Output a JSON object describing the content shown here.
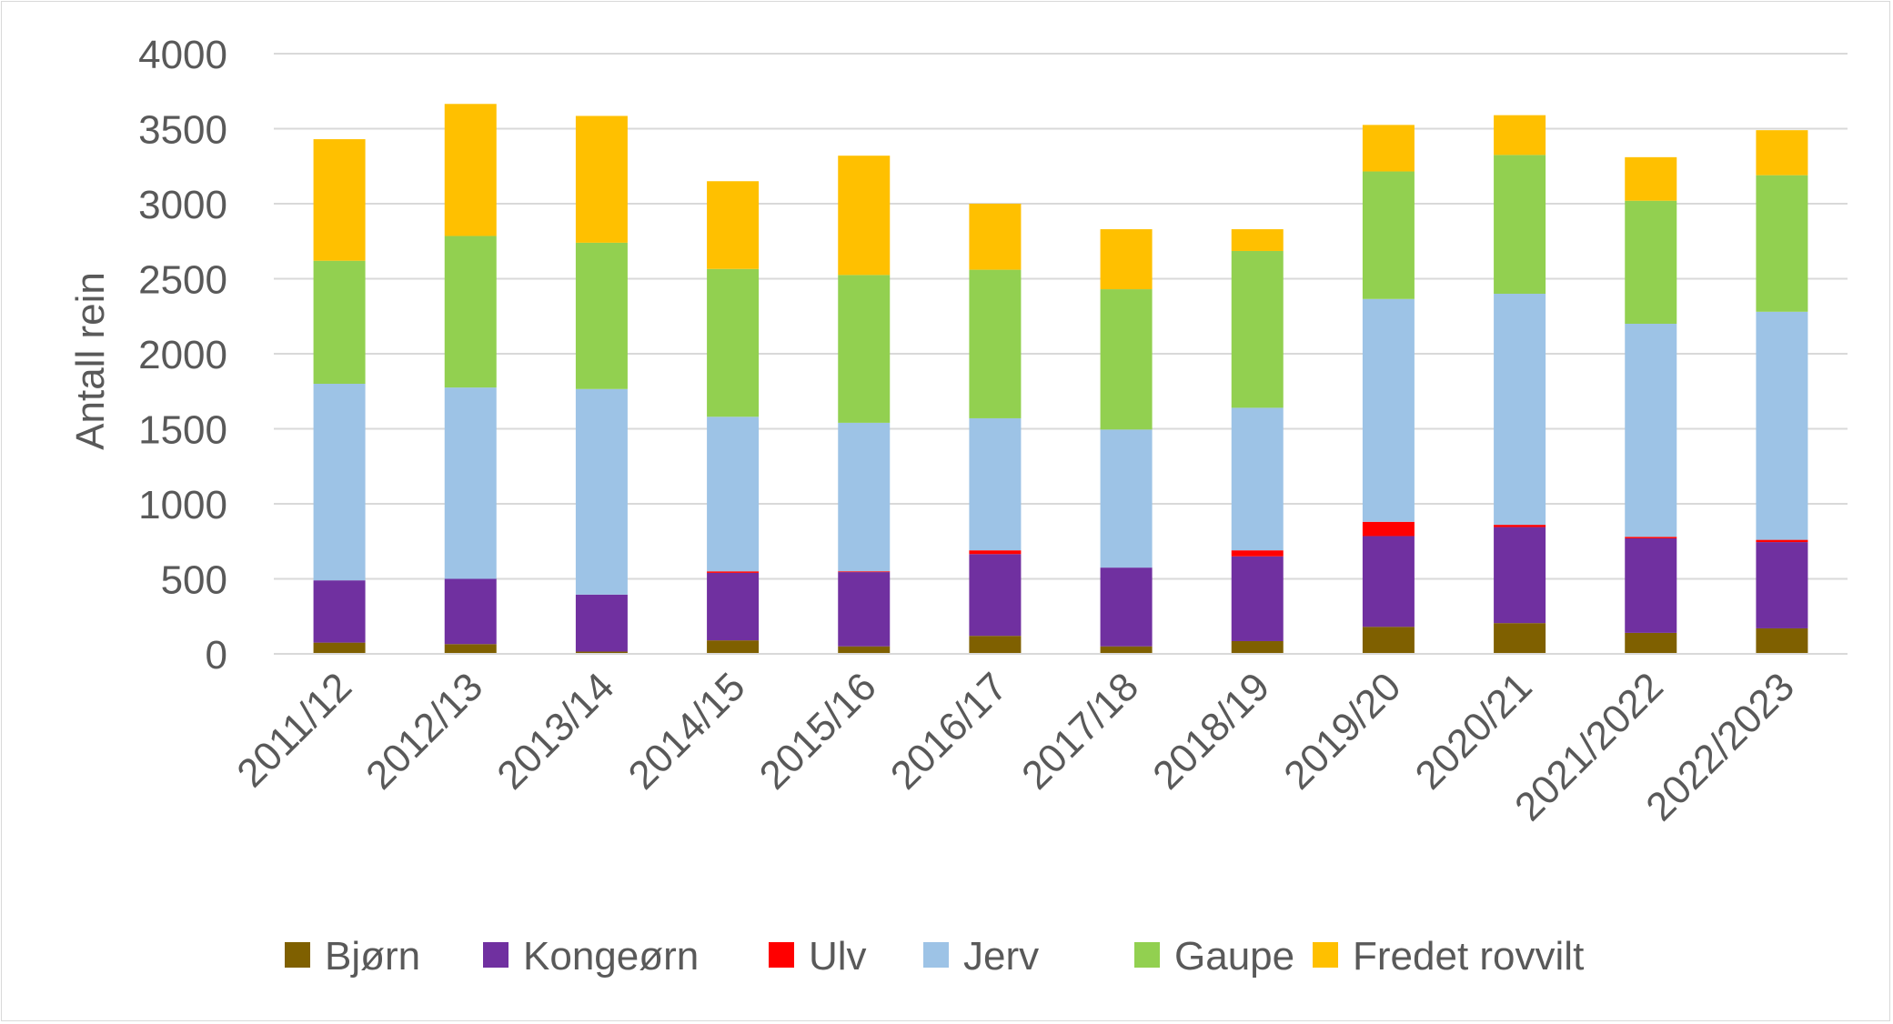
{
  "chart_data": {
    "type": "bar",
    "stacked": true,
    "title": "",
    "xlabel": "",
    "ylabel": "Antall rein",
    "ylim": [
      0,
      4000
    ],
    "yticks": [
      0,
      500,
      1000,
      1500,
      2000,
      2500,
      3000,
      3500,
      4000
    ],
    "grid": true,
    "legend_position": "bottom",
    "categories": [
      "2011/12",
      "2012/13",
      "2013/14",
      "2014/15",
      "2015/16",
      "2016/17",
      "2017/18",
      "2018/19",
      "2019/20",
      "2020/21",
      "2021/2022",
      "2022/2023"
    ],
    "series": [
      {
        "name": "Bjørn",
        "color": "#7f6000",
        "values": [
          75,
          65,
          15,
          90,
          50,
          120,
          50,
          85,
          180,
          205,
          140,
          170
        ]
      },
      {
        "name": "Kongeørn",
        "color": "#7030a0",
        "values": [
          415,
          435,
          380,
          450,
          495,
          545,
          525,
          565,
          605,
          640,
          630,
          575
        ]
      },
      {
        "name": "Ulv",
        "color": "#ff0000",
        "values": [
          0,
          0,
          0,
          10,
          5,
          25,
          0,
          40,
          95,
          15,
          10,
          15
        ]
      },
      {
        "name": "Jerv",
        "color": "#9dc3e6",
        "values": [
          1310,
          1275,
          1370,
          1030,
          990,
          880,
          920,
          950,
          1485,
          1540,
          1420,
          1520
        ]
      },
      {
        "name": "Gaupe",
        "color": "#92d050",
        "values": [
          820,
          1010,
          975,
          985,
          985,
          990,
          935,
          1045,
          850,
          925,
          820,
          910
        ]
      },
      {
        "name": "Fredet rovvilt",
        "color": "#ffc000",
        "values": [
          810,
          880,
          845,
          585,
          795,
          440,
          400,
          145,
          310,
          265,
          290,
          300
        ]
      }
    ]
  }
}
